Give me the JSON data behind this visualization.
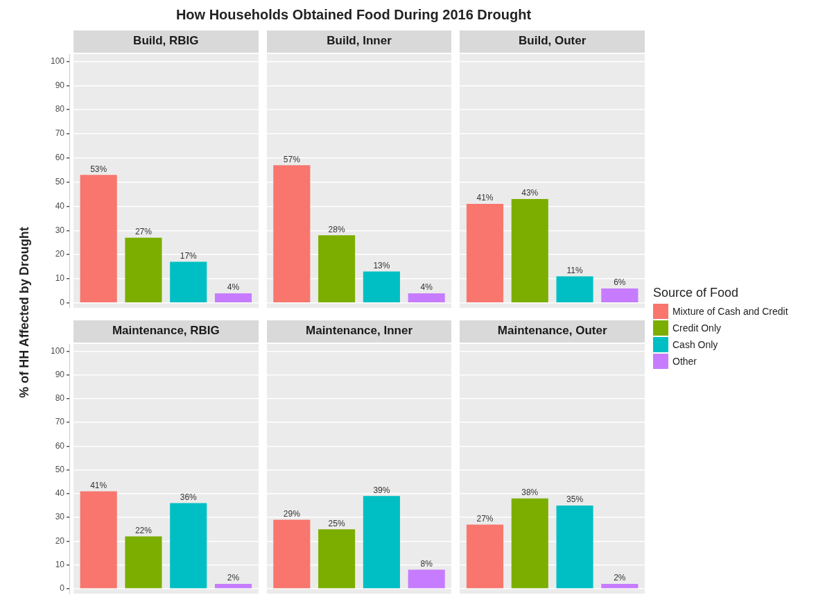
{
  "chart_data": [
    {
      "type": "bar",
      "annotations": [
        "How Households Obtained Food During 2016 Drought"
      ],
      "ylabel": "% of HH Affected by Drought",
      "categories": [
        "Build, RBIG",
        "Build, Inner",
        "Build, Outer"
      ],
      "ylim": [
        -2,
        103
      ],
      "yticks": [
        0,
        10,
        20,
        30,
        40,
        50,
        60,
        70,
        80,
        90,
        100
      ],
      "grid": "y",
      "legend": "right",
      "legend_title": "Source of Food",
      "series": [
        {
          "name": "Mixture of Cash and Credit",
          "color": "#f8766d",
          "values": [
            53,
            57,
            41
          ],
          "value_labels": [
            "53%",
            "57%",
            "41%"
          ]
        },
        {
          "name": "Credit Only",
          "color": "#7cae00",
          "values": [
            27,
            28,
            43
          ],
          "value_labels": [
            "27%",
            "28%",
            "43%"
          ]
        },
        {
          "name": "Cash Only",
          "color": "#00bfc4",
          "values": [
            17,
            13,
            11
          ],
          "value_labels": [
            "17%",
            "13%",
            "11%"
          ]
        },
        {
          "name": "Other",
          "color": "#c77cff",
          "values": [
            4,
            4,
            6
          ],
          "value_labels": [
            "4%",
            "4%",
            "6%"
          ]
        }
      ]
    },
    {
      "type": "bar",
      "categories": [
        "Maintenance, RBIG",
        "Maintenance, Inner",
        "Maintenance, Outer"
      ],
      "ylim": [
        -2,
        103
      ],
      "yticks": [
        0,
        10,
        20,
        30,
        40,
        50,
        60,
        70,
        80,
        90,
        100
      ],
      "grid": "y",
      "series": [
        {
          "color": "#f8766d",
          "values": [
            41,
            29,
            27
          ],
          "value_labels": [
            "41%",
            "29%",
            "27%"
          ]
        },
        {
          "color": "#7cae00",
          "values": [
            22,
            25,
            38
          ],
          "value_labels": [
            "22%",
            "25%",
            "38%"
          ]
        },
        {
          "color": "#00bfc4",
          "values": [
            36,
            39,
            35
          ],
          "value_labels": [
            "36%",
            "39%",
            "35%"
          ]
        },
        {
          "color": "#c77cff",
          "values": [
            2,
            8,
            2
          ],
          "value_labels": [
            "2%",
            "8%",
            "2%"
          ]
        }
      ]
    }
  ]
}
